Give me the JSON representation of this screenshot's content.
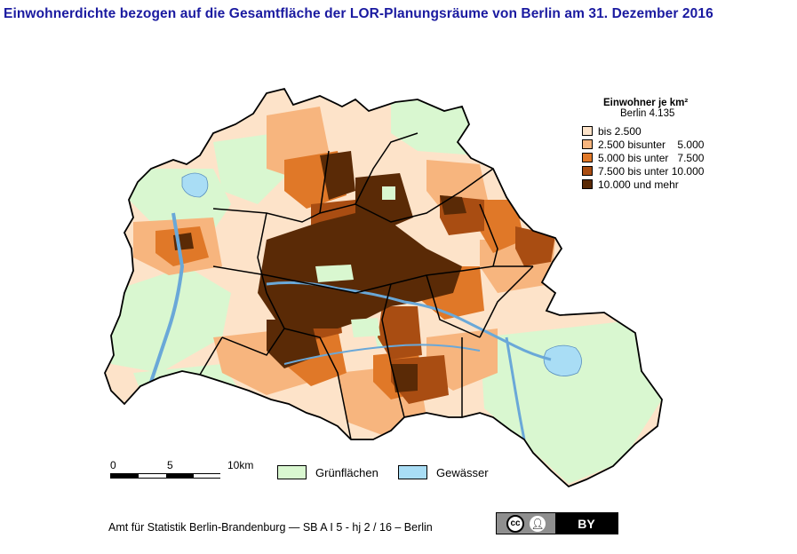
{
  "title": "Einwohnerdichte bezogen auf die Gesamtfläche der LOR-Planungsräume von Berlin am 31. Dezember 2016",
  "colors": {
    "class1": "#fde3c9",
    "class2": "#f7b57e",
    "class3": "#e07828",
    "class4": "#a94d12",
    "class5": "#5a2a06",
    "green": "#d9f7d0",
    "water": "#a9ddf5",
    "title": "#1a1aa0"
  },
  "legend": {
    "title": "Einwohner je km²",
    "subtitle": "Berlin  4.135",
    "classes": [
      {
        "label": "bis 2.500",
        "color": "#fde3c9"
      },
      {
        "label": "2.500 bisunter    5.000",
        "color": "#f7b57e"
      },
      {
        "label": "5.000 bis unter   7.500",
        "color": "#e07828"
      },
      {
        "label": "7.500 bis unter 10.000",
        "color": "#a94d12"
      },
      {
        "label": "10.000 und mehr",
        "color": "#5a2a06"
      }
    ]
  },
  "scalebar": {
    "label_0": "0",
    "label_5": "5",
    "label_10": "10km"
  },
  "area_legend": {
    "green_label": "Grünflächen",
    "water_label": "Gewässer"
  },
  "footer": {
    "text": "Amt für Statistik Berlin-Brandenburg — SB A I 5 - hj 2 / 16 –  Berlin"
  },
  "license": {
    "cc": "cc",
    "by": "BY",
    "person_icon": "person-icon"
  }
}
